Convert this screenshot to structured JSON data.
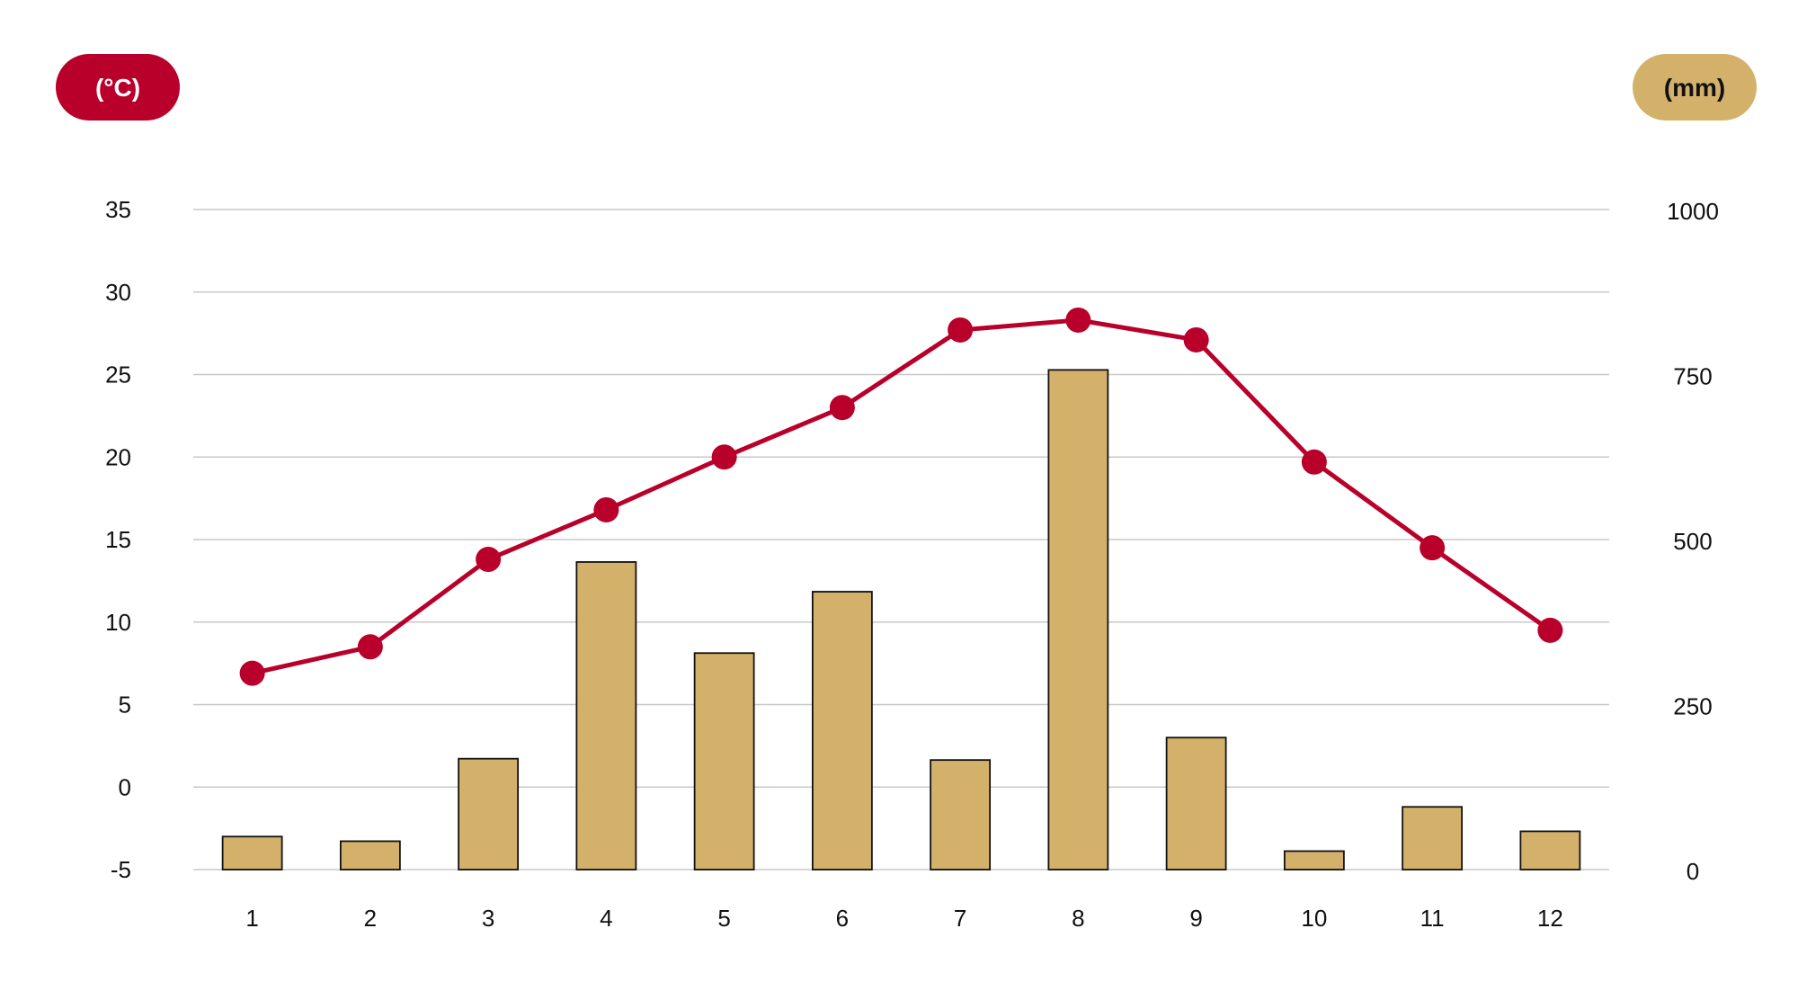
{
  "colors": {
    "temperature": "#b8002a",
    "precipitation": "#d4b16a",
    "grid": "#c8c8c8",
    "bar_outline": "#111111",
    "text": "#111111"
  },
  "badges": {
    "left_unit": "(°C)",
    "right_unit": "(mm)"
  },
  "chart_data": {
    "type": "bar+line",
    "title": "",
    "xlabel": "",
    "categories": [
      "1",
      "2",
      "3",
      "4",
      "5",
      "6",
      "7",
      "8",
      "9",
      "10",
      "11",
      "12"
    ],
    "y_left": {
      "label": "(°C)",
      "range": [
        -5,
        35
      ],
      "ticks": [
        "35",
        "30",
        "25",
        "20",
        "15",
        "10",
        "5",
        "0",
        "-5"
      ]
    },
    "y_right": {
      "label": "(mm)",
      "range": [
        0,
        1000
      ],
      "ticks": [
        "1000",
        "750",
        "500",
        "250",
        "0"
      ]
    },
    "grid": true,
    "series": [
      {
        "type": "bar",
        "axis": "right",
        "color": "#d4b16a",
        "values": [
          50,
          43,
          168,
          466,
          328,
          421,
          166,
          757,
          200,
          28,
          95,
          58
        ]
      },
      {
        "type": "line",
        "axis": "left",
        "color": "#b8002a",
        "values": [
          6.9,
          8.5,
          13.8,
          16.8,
          20.0,
          23.0,
          27.7,
          28.3,
          27.1,
          19.7,
          14.5,
          9.5
        ]
      }
    ]
  }
}
